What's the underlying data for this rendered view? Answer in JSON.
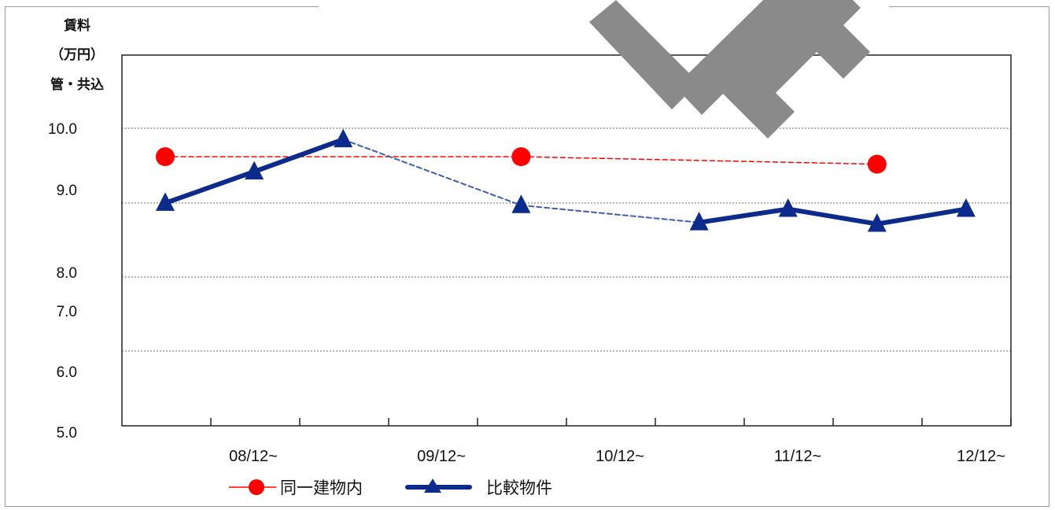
{
  "chart_data": {
    "type": "line",
    "ylabel_lines": [
      "賃料",
      "（万円）",
      "管・共込"
    ],
    "y_tick_labels": [
      "10.0",
      "9.0",
      "8.0",
      "7.0",
      "6.0",
      "5.0"
    ],
    "x_tick_labels": [
      "08/12~",
      "09/12~",
      "10/12~",
      "11/12~",
      "12/12~"
    ],
    "ylim": [
      5.0,
      10.0
    ],
    "grid": true,
    "legend_position": "bottom-left",
    "series": [
      {
        "name": "同一建物内",
        "color": "#ff0000",
        "marker": "circle",
        "values": [
          9.62,
          null,
          null,
          null,
          9.62,
          null,
          null,
          null,
          9.52,
          null
        ]
      },
      {
        "name": "比較物件",
        "color": "#0d2b8c",
        "marker": "triangle",
        "values": [
          9.0,
          9.42,
          9.85,
          null,
          8.97,
          null,
          8.74,
          8.92,
          8.72,
          8.92
        ]
      }
    ]
  }
}
